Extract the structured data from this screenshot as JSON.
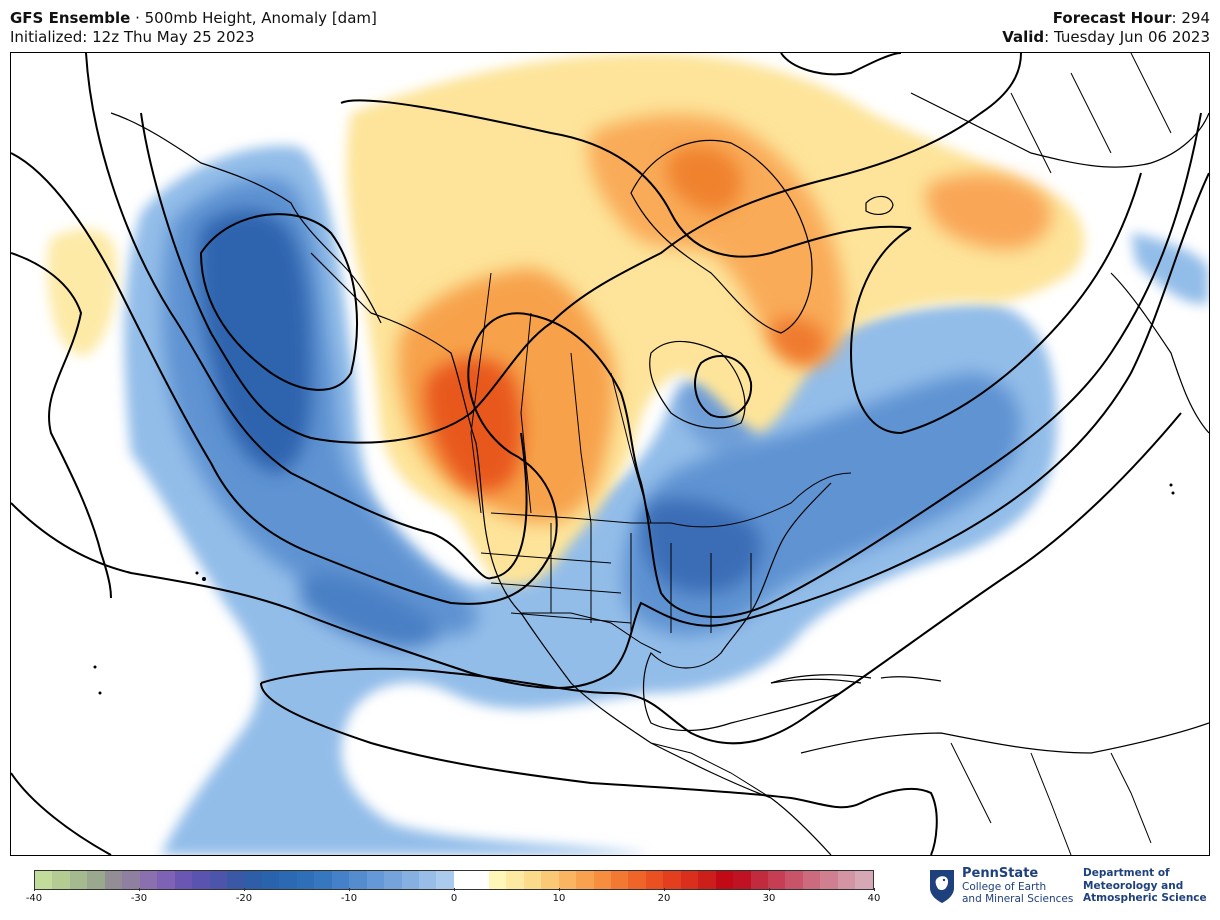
{
  "header": {
    "model": "GFS Ensemble",
    "separator": " · ",
    "product": "500mb Height, Anomaly [dam]",
    "init_label": "Initialized: 12z Thu May 25 2023",
    "fh_label": "Forecast Hour",
    "fh_value": ": 294",
    "valid_label": "Valid",
    "valid_value": ": Tuesday Jun 06 2023"
  },
  "colorbar": {
    "min": -40,
    "max": 40,
    "ticks": [
      "-40",
      "-30",
      "-20",
      "-10",
      "0",
      "10",
      "20",
      "30",
      "40"
    ],
    "colors": [
      "#c2dc9c",
      "#b4cc94",
      "#a5ba8f",
      "#9aa98d",
      "#938d96",
      "#8f7fa1",
      "#8a70ae",
      "#7d62b6",
      "#6a57b3",
      "#5a53b0",
      "#4d54ab",
      "#3b58a6",
      "#2f5ea8",
      "#2a63ad",
      "#2b69b3",
      "#2f6fb8",
      "#3777c0",
      "#4581c8",
      "#548cd0",
      "#6498d6",
      "#75a4dc",
      "#86b0e2",
      "#98bde8",
      "#abcaee",
      "#ffffff",
      "#ffffff",
      "#fff6b8",
      "#fde9a1",
      "#fcda8b",
      "#fbc876",
      "#fab562",
      "#f8a14f",
      "#f68d3f",
      "#f37932",
      "#ef6428",
      "#ea5022",
      "#e33f1e",
      "#d92f1c",
      "#cc1f1a",
      "#c10a16",
      "#bf1323",
      "#c22a3d",
      "#c53e54",
      "#c9546a",
      "#cc6a7e",
      "#d07f91",
      "#d394a4",
      "#d6a8b5"
    ]
  },
  "logo": {
    "name": "PennState",
    "line2": "College of Earth",
    "line3": "and Mineral Sciences",
    "dept_1": "Department of",
    "dept_2": "Meteorology and",
    "dept_3": "Atmospheric Science"
  },
  "map": {
    "negative_anomaly_color": "#3d72b8",
    "positive_anomaly_color": "#ec6a24"
  }
}
